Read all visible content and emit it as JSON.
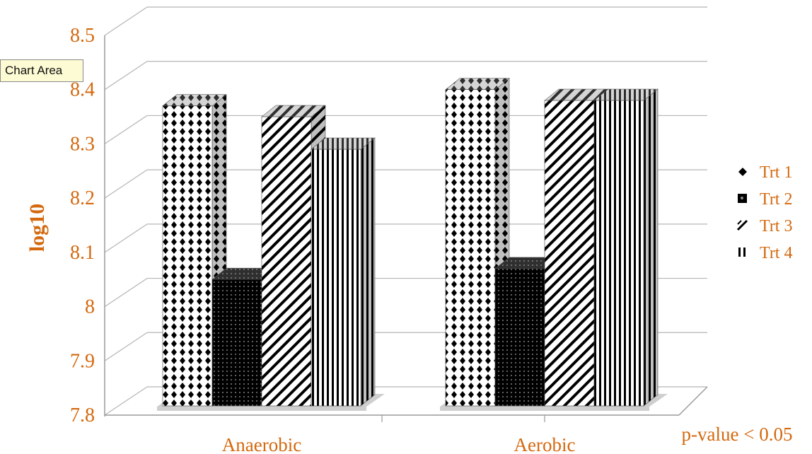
{
  "tooltip": {
    "text": "Chart Area"
  },
  "chart_data": {
    "type": "bar",
    "title": "",
    "xlabel": "",
    "ylabel": "log10",
    "ylim": [
      7.8,
      8.5
    ],
    "yticks": [
      "7.8",
      "7.9",
      "8",
      "8.1",
      "8.2",
      "8.3",
      "8.4",
      "8.5"
    ],
    "categories": [
      "Anaerobic",
      "Aerobic"
    ],
    "series": [
      {
        "name": "Trt 1",
        "values": [
          8.37,
          8.4
        ],
        "pattern": "dots"
      },
      {
        "name": "Trt 2",
        "values": [
          8.05,
          8.07
        ],
        "pattern": "dense-dots"
      },
      {
        "name": "Trt 3",
        "values": [
          8.35,
          8.38
        ],
        "pattern": "diagonal"
      },
      {
        "name": "Trt 4",
        "values": [
          8.29,
          8.38
        ],
        "pattern": "vertical"
      }
    ],
    "legend_position": "right",
    "grid": true,
    "three_d": true,
    "annotation": "p-value < 0.05",
    "colors": {
      "label": "#d4690f",
      "grid": "#b5b5b5",
      "bar_ink": "#000000"
    }
  }
}
